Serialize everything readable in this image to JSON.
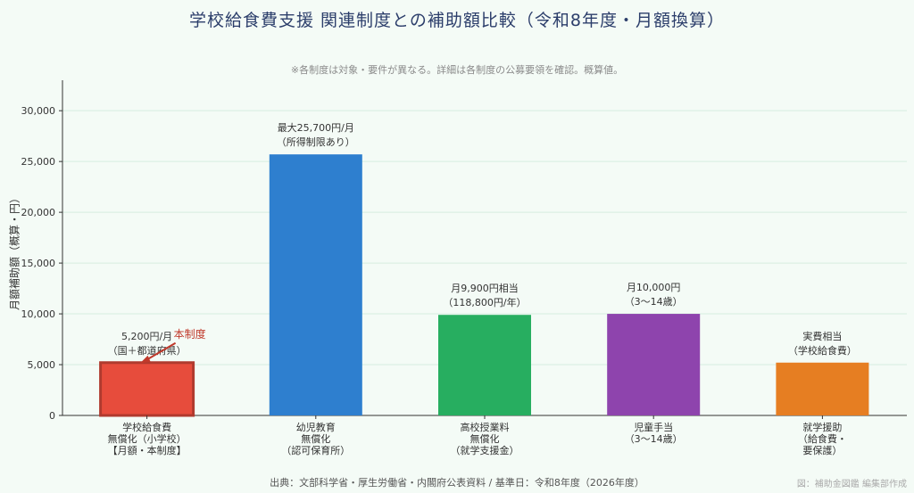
{
  "header": {
    "title": "学校給食費支援 関連制度との補助額比較（令和8年度・月額換算）",
    "note": "※各制度は対象・要件が異なる。詳細は各制度の公募要領を確認。概算値。"
  },
  "footer": {
    "source": "出典：文部科学省・厚生労働省・内閣府公表資料 / 基準日：令和8年度（2026年度）",
    "credit": "図：補助金図鑑 編集部作成"
  },
  "colors": {
    "school_lunch": "#e74c3c",
    "early_education": "#2e7fcf",
    "high_school": "#27ae60",
    "child_allowance": "#8e44ad",
    "school_aid": "#e67e22",
    "gridline": "#d6ece0",
    "annotation": "#c0392b"
  },
  "chart_data": {
    "type": "bar",
    "ylabel": "月額補助額（概算・円）",
    "ylim": [
      0,
      33000
    ],
    "yticks": [
      0,
      5000,
      10000,
      15000,
      20000,
      25000,
      30000
    ],
    "ytick_labels": [
      "0",
      "5,000",
      "10,000",
      "15,000",
      "20,000",
      "25,000",
      "30,000"
    ],
    "grid": true,
    "categories": [
      [
        "学校給食費",
        "無償化（小学校）",
        "【月額・本制度】"
      ],
      [
        "幼児教育",
        "無償化",
        "（認可保育所）"
      ],
      [
        "高校授業料",
        "無償化",
        "（就学支援金）"
      ],
      [
        "児童手当",
        "（3〜14歳）"
      ],
      [
        "就学援助",
        "（給食費・",
        "要保護）"
      ]
    ],
    "values": [
      5200,
      25700,
      9900,
      10000,
      5200
    ],
    "colors": [
      "#e74c3c",
      "#2e7fcf",
      "#27ae60",
      "#8e44ad",
      "#e67e22"
    ],
    "highlight_index": 0,
    "data_labels": [
      [
        "5,200円/月",
        "（国＋都道府県）"
      ],
      [
        "最大25,700円/月",
        "（所得制限あり）"
      ],
      [
        "月9,900円相当",
        "（118,800円/年）"
      ],
      [
        "月10,000円",
        "（3〜14歳）"
      ],
      [
        "実費相当",
        "（学校給食費）"
      ]
    ],
    "annotation": "本制度"
  }
}
